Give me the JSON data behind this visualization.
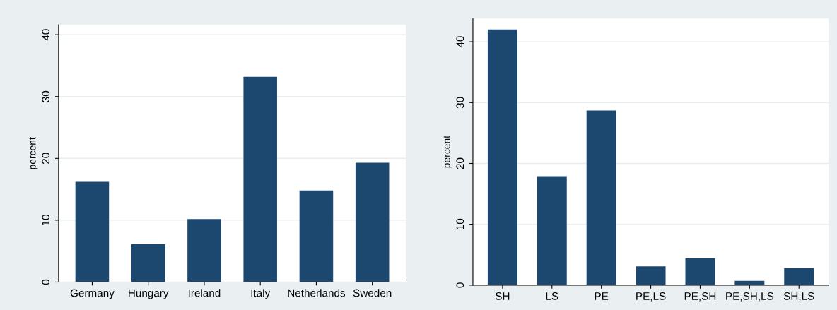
{
  "chart_data": [
    {
      "type": "bar",
      "ylabel": "percent",
      "categories": [
        "Germany",
        "Hungary",
        "Ireland",
        "Italy",
        "Netherlands",
        "Sweden"
      ],
      "values": [
        16.2,
        6.1,
        10.2,
        33.2,
        14.8,
        19.3
      ],
      "color": "#1c4870",
      "ylim": [
        0,
        41.6
      ],
      "yticks": [
        0,
        10,
        20,
        30,
        40
      ],
      "grid": "y"
    },
    {
      "type": "bar",
      "ylabel": "percent",
      "categories": [
        "SH",
        "LS",
        "PE",
        "PE,LS",
        "PE,SH",
        "PE,SH,LS",
        "SH,LS"
      ],
      "values": [
        42.0,
        17.9,
        28.7,
        3.1,
        4.4,
        0.7,
        2.8
      ],
      "color": "#1c4870",
      "ylim": [
        0,
        43.8
      ],
      "yticks": [
        0,
        10,
        20,
        30,
        40
      ],
      "grid": "y"
    }
  ]
}
